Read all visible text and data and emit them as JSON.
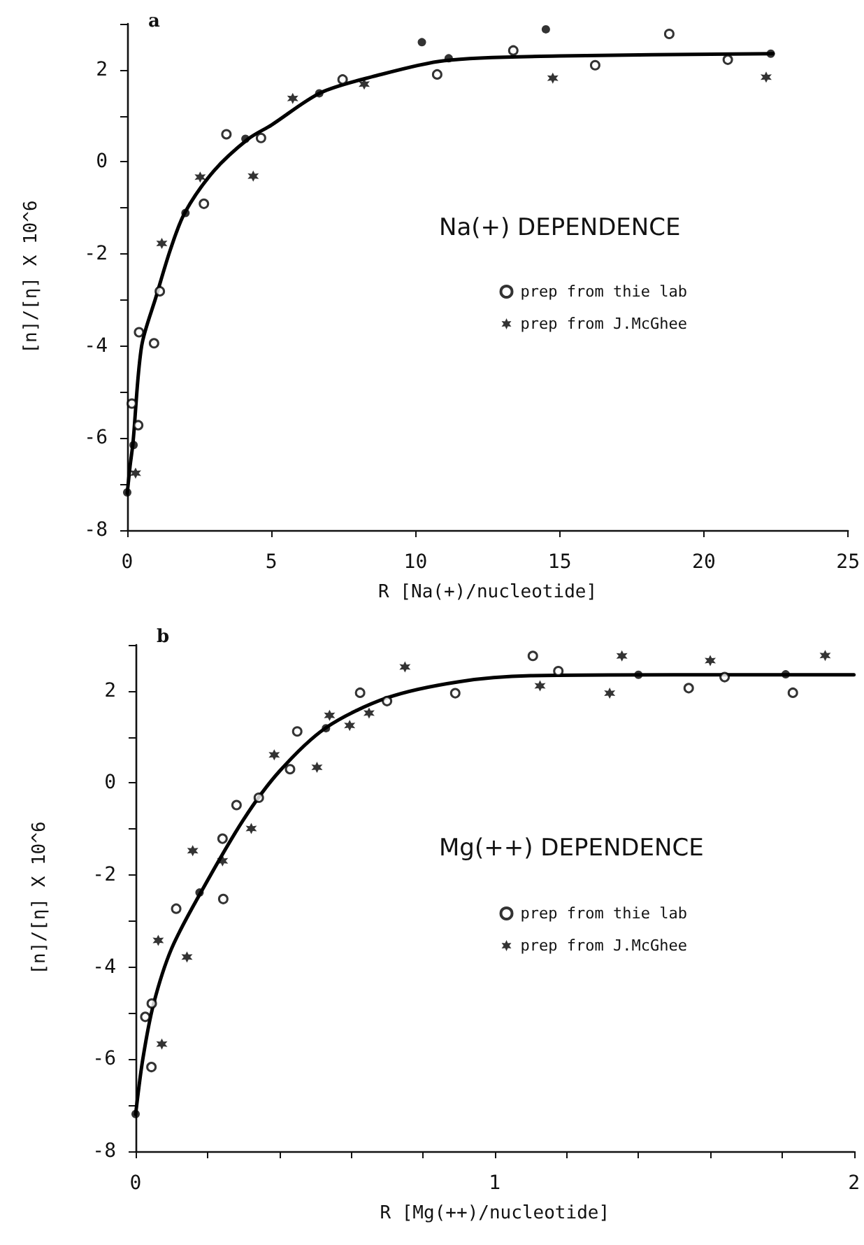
{
  "chart_data": [
    {
      "type": "scatter",
      "title": "a",
      "legend_title": "Na(+) DEPENDENCE",
      "xlabel": "R [Na(+)/nucleotide]",
      "ylabel": "[n]/[η] X 10^6",
      "xlim": [
        0,
        25
      ],
      "xticks": [
        0,
        5,
        10,
        15,
        20,
        25
      ],
      "ylim": [
        -8,
        3
      ],
      "yticks": [
        -8,
        {
          "value": -7,
          "label": null
        },
        -6,
        {
          "value": -5,
          "label": null
        },
        -4,
        {
          "value": -3,
          "label": null
        },
        -2,
        {
          "value": -1,
          "label": null
        },
        0,
        {
          "value": 1,
          "label": null
        },
        2,
        {
          "value": 3,
          "label": null
        }
      ],
      "grid": false,
      "legend": "right",
      "series": [
        {
          "name": "prep from thie lab",
          "color": "#000000",
          "marker": "circle",
          "x": [
            3.44,
            2.66,
            1.13,
            0.41,
            0.93,
            0.16,
            0.38,
            4.64,
            7.47,
            10.75,
            13.39,
            16.23,
            18.8,
            20.83
          ],
          "values": [
            0.6,
            -0.91,
            -2.81,
            -3.7,
            -3.94,
            -5.25,
            -5.72,
            0.52,
            1.79,
            1.9,
            2.42,
            2.1,
            2.78,
            2.22
          ]
        },
        {
          "name": "prep from J.McGhee",
          "color": "#000000",
          "marker": "cross",
          "x": [
            2.53,
            1.2,
            4.37,
            5.74,
            8.22,
            0.29,
            14.76,
            22.16
          ],
          "values": [
            -0.33,
            -1.77,
            -0.31,
            1.38,
            1.69,
            -6.76,
            1.82,
            1.84
          ]
        },
        {
          "color": "#000000",
          "marker": "circle",
          "x": [
            0,
            0.22,
            2.02,
            4.1,
            6.66,
            10.22,
            11.15,
            14.52,
            22.32
          ],
          "values": [
            -7.18,
            -6.15,
            -1.11,
            0.5,
            1.49,
            2.6,
            2.25,
            2.88,
            2.35
          ]
        },
        {
          "type": "line",
          "color": "#000000",
          "marker": "none",
          "line_style": "solid",
          "x": [
            0,
            0.1,
            0.2,
            0.5,
            1,
            1.5,
            2,
            3,
            4.2,
            5,
            6.7,
            8.5,
            11,
            15,
            22.4
          ],
          "values": [
            -7.2,
            -6.6,
            -6.1,
            -4.0,
            -2.93,
            -1.9,
            -1.1,
            -0.2,
            0.5,
            0.8,
            1.5,
            1.85,
            2.2,
            2.3,
            2.35
          ]
        }
      ]
    },
    {
      "type": "scatter",
      "title": "b",
      "legend_title": "Mg(++) DEPENDENCE",
      "xlabel": "R [Mg(++)/nucleotide]",
      "ylabel": "[n]/[η] X 10^6",
      "xlim": [
        0,
        2
      ],
      "xticks": [
        0,
        {
          "value": 0.2,
          "label": null
        },
        {
          "value": 0.4,
          "label": null
        },
        {
          "value": 0.6,
          "label": null
        },
        {
          "value": 0.8,
          "label": null
        },
        1,
        {
          "value": 1.2,
          "label": null
        },
        {
          "value": 1.4,
          "label": null
        },
        {
          "value": 1.6,
          "label": null
        },
        {
          "value": 1.8,
          "label": null
        },
        2
      ],
      "ylim": [
        -8,
        3
      ],
      "yticks": [
        -8,
        {
          "value": -7,
          "label": null
        },
        -6,
        {
          "value": -5,
          "label": null
        },
        -4,
        {
          "value": -3,
          "label": null
        },
        -2,
        {
          "value": -1,
          "label": null
        },
        0,
        {
          "value": 1,
          "label": null
        },
        2,
        {
          "value": 3,
          "label": null
        }
      ],
      "grid": false,
      "legend": "right",
      "series": [
        {
          "name": "prep from thie lab",
          "color": "#000000",
          "marker": "circle",
          "x": [
            0.027,
            0.044,
            0.045,
            0.113,
            0.244,
            0.242,
            0.281,
            0.343,
            0.43,
            0.45,
            0.625,
            0.7,
            0.89,
            1.106,
            1.177,
            1.54,
            1.64,
            1.83
          ],
          "values": [
            -5.08,
            -6.17,
            -4.79,
            -2.73,
            -2.52,
            -1.21,
            -0.48,
            -0.32,
            0.3,
            1.12,
            1.96,
            1.78,
            1.95,
            2.76,
            2.43,
            2.06,
            2.3,
            1.96
          ]
        },
        {
          "name": "prep from J.McGhee",
          "color": "#000000",
          "marker": "cross",
          "x": [
            0.063,
            0.073,
            0.159,
            0.143,
            0.242,
            0.322,
            0.386,
            0.505,
            0.54,
            0.596,
            0.65,
            0.75,
            1.126,
            1.354,
            1.32,
            1.6,
            1.92
          ],
          "values": [
            -3.42,
            -5.67,
            -1.47,
            -3.78,
            -1.69,
            -0.99,
            0.61,
            0.34,
            1.47,
            1.25,
            1.52,
            2.52,
            2.11,
            2.76,
            1.95,
            2.66,
            2.77
          ]
        },
        {
          "color": "#000000",
          "marker": "circle",
          "x": [
            0,
            0.178,
            0.53,
            1.4,
            1.81
          ],
          "values": [
            -7.19,
            -2.38,
            1.19,
            2.35,
            2.36
          ]
        },
        {
          "type": "line",
          "color": "#000000",
          "marker": "none",
          "line_style": "solid",
          "x": [
            0,
            0.02,
            0.05,
            0.1,
            0.18,
            0.3,
            0.4,
            0.53,
            0.7,
            0.9,
            1.1,
            1.5,
            2
          ],
          "values": [
            -7.2,
            -6.0,
            -4.8,
            -3.6,
            -2.4,
            -0.8,
            0.25,
            1.2,
            1.85,
            2.2,
            2.33,
            2.35,
            2.35
          ]
        }
      ]
    }
  ]
}
